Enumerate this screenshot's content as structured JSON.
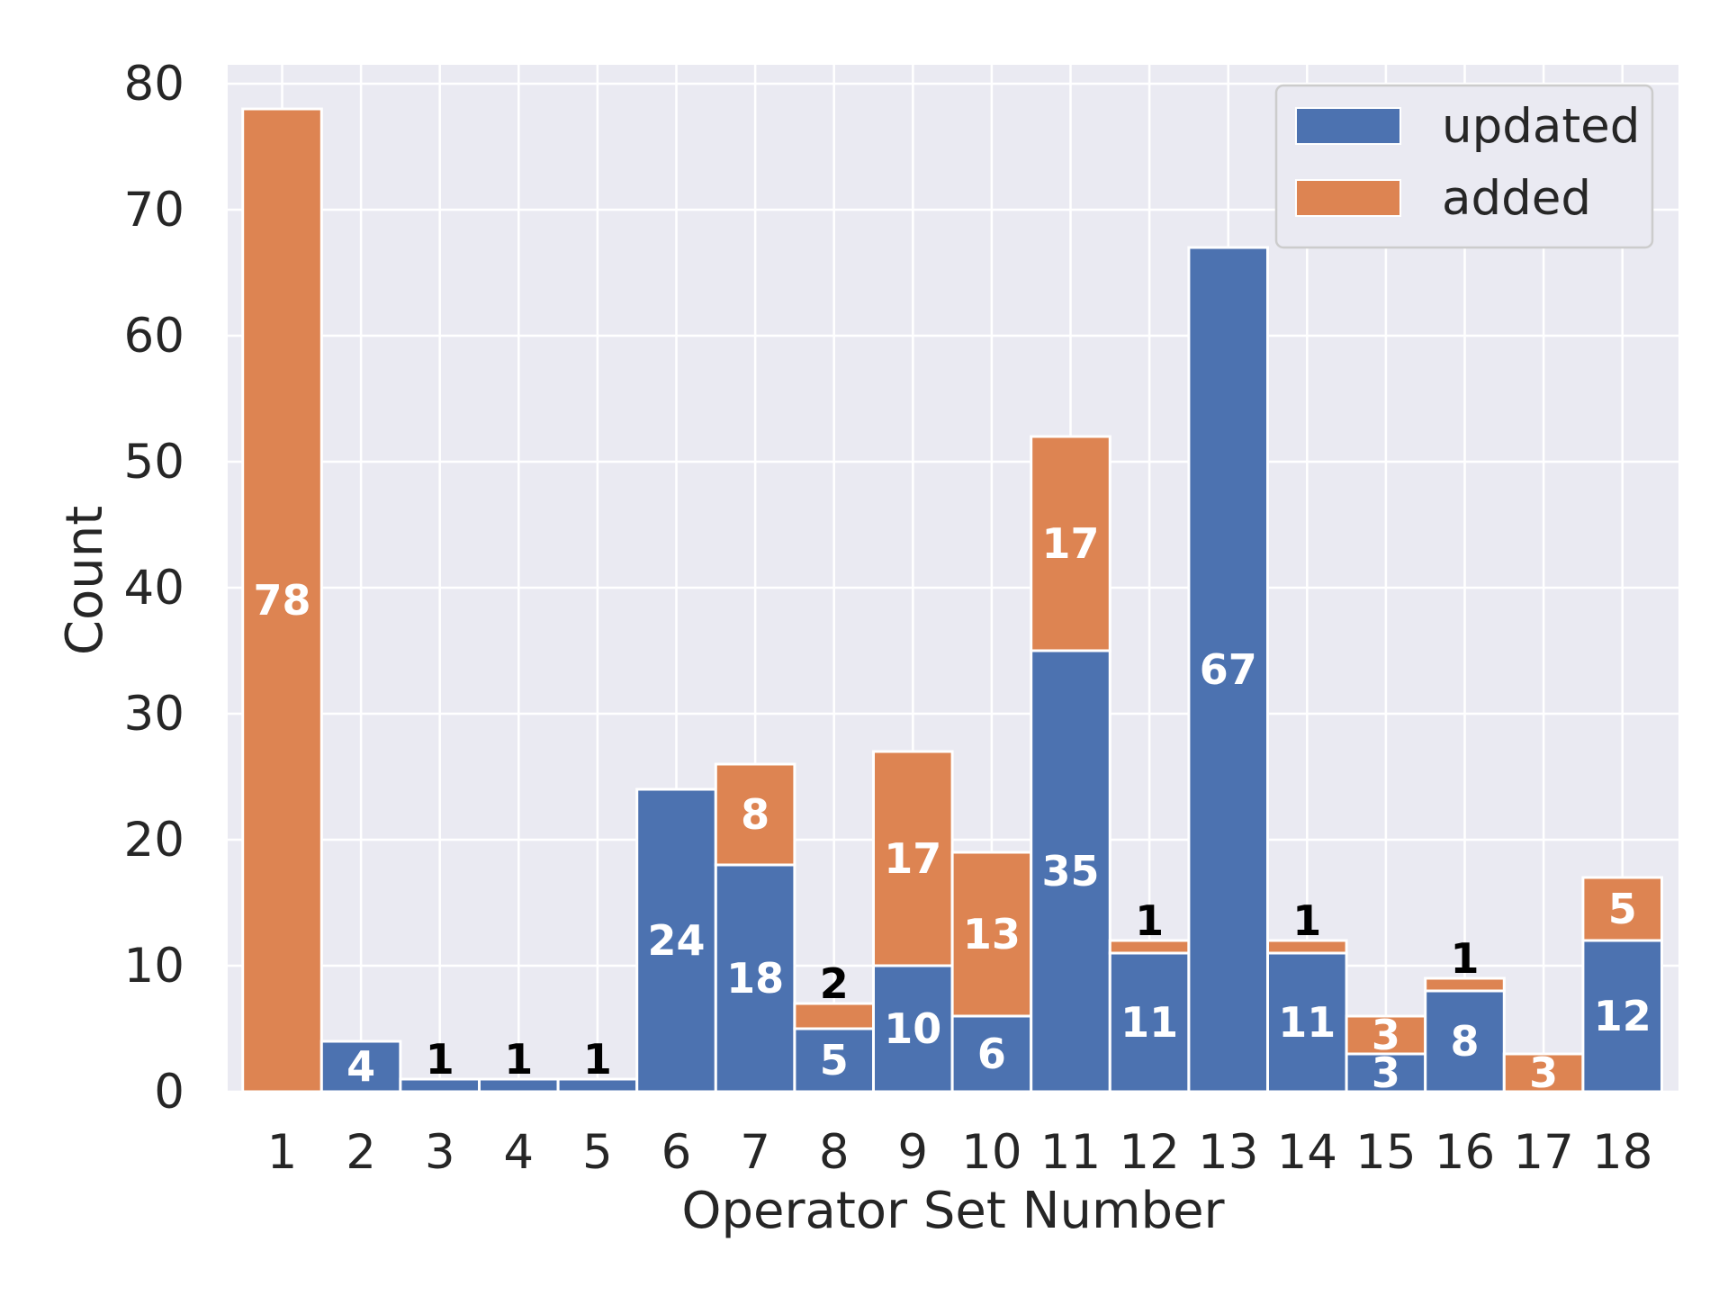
{
  "chart_data": {
    "type": "bar",
    "stacked": true,
    "title": "",
    "xlabel": "Operator Set Number",
    "ylabel": "Count",
    "ylim": [
      0,
      82
    ],
    "yticks": [
      "0",
      "10",
      "20",
      "30",
      "40",
      "50",
      "60",
      "70",
      "80"
    ],
    "grid": true,
    "legend_position": "top-right",
    "categories": [
      "1",
      "2",
      "3",
      "4",
      "5",
      "6",
      "7",
      "8",
      "9",
      "10",
      "11",
      "12",
      "13",
      "14",
      "15",
      "16",
      "17",
      "18"
    ],
    "series": [
      {
        "name": "updated",
        "color": "#4c72b0",
        "values": [
          0,
          4,
          1,
          1,
          1,
          24,
          18,
          5,
          10,
          6,
          35,
          11,
          67,
          11,
          3,
          8,
          0,
          12
        ]
      },
      {
        "name": "added",
        "color": "#dd8452",
        "values": [
          78,
          0,
          0,
          0,
          0,
          0,
          8,
          2,
          17,
          13,
          17,
          1,
          0,
          1,
          3,
          1,
          3,
          5
        ]
      }
    ]
  }
}
